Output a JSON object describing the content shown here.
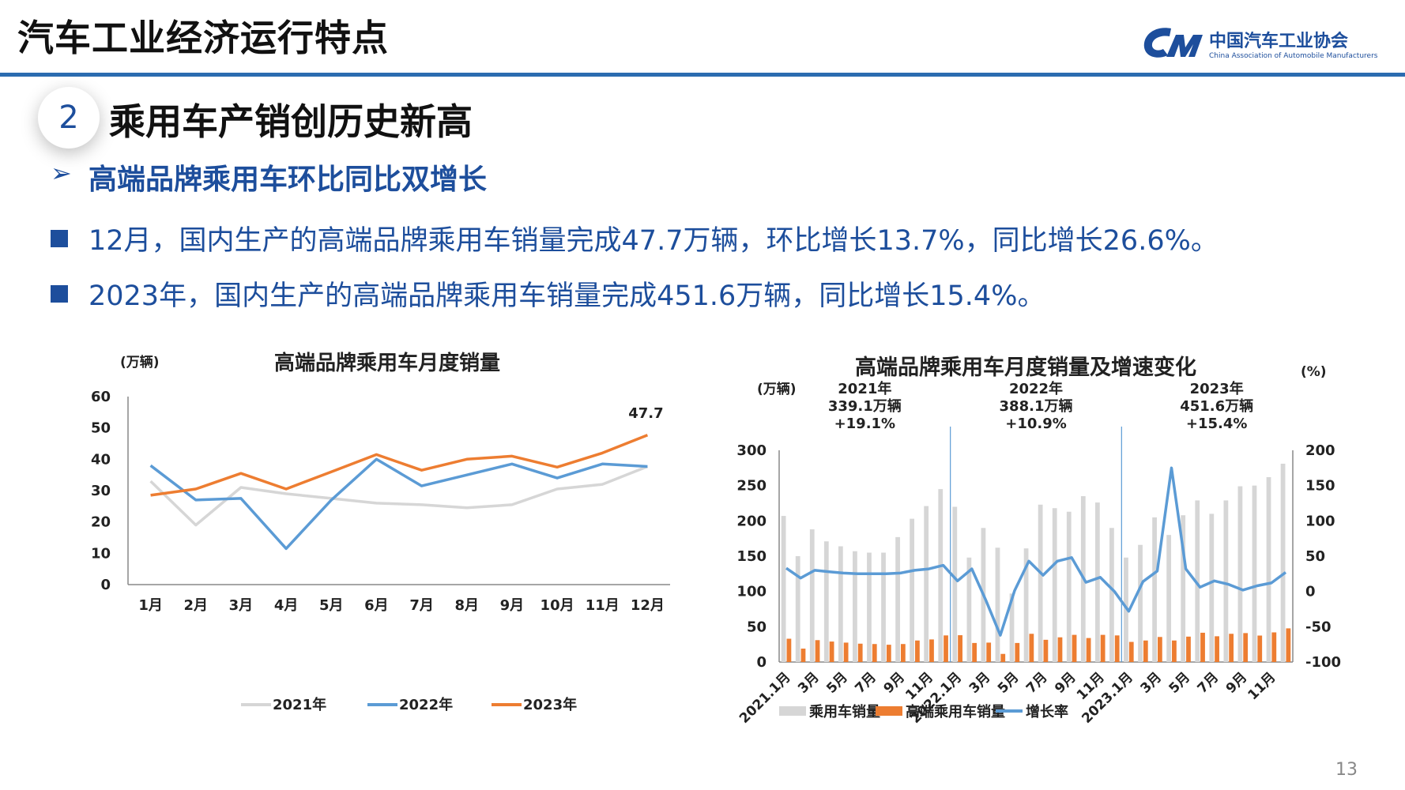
{
  "header": {
    "title": "汽车工业经济运行特点"
  },
  "logo": {
    "name": "中国汽车工业协会",
    "english": "China Association of Automobile Manufacturers"
  },
  "section": {
    "number": "2",
    "title": "乘用车产销创历史新高"
  },
  "subtitle": {
    "arrow": "➢",
    "text": "高端品牌乘用车环比同比双增长"
  },
  "bullets": [
    "12月，国内生产的高端品牌乘用车销量完成47.7万辆，环比增长13.7%，同比增长26.6%。",
    "2023年，国内生产的高端品牌乘用车销量完成451.6万辆，同比增长15.4%。"
  ],
  "page_number": "13",
  "colors": {
    "y2021": "#d6d6d6",
    "y2022": "#5b9bd5",
    "y2023": "#ed7d31",
    "accent": "#1d4e9c"
  },
  "chart_data": [
    {
      "type": "line",
      "title": "高端品牌乘用车月度销量",
      "ylabel": "(万辆)",
      "ylim": [
        0,
        60
      ],
      "yticks": [
        0,
        10,
        20,
        30,
        40,
        50,
        60
      ],
      "categories": [
        "1月",
        "2月",
        "3月",
        "4月",
        "5月",
        "6月",
        "7月",
        "8月",
        "9月",
        "10月",
        "11月",
        "12月"
      ],
      "series": [
        {
          "name": "2021年",
          "values": [
            33,
            19,
            31,
            29,
            27.5,
            26,
            25.5,
            24.5,
            25.5,
            30.5,
            32,
            37.7
          ]
        },
        {
          "name": "2022年",
          "values": [
            38,
            27,
            27.5,
            11.5,
            27,
            40,
            31.5,
            35,
            38.5,
            34,
            38.5,
            37.7
          ]
        },
        {
          "name": "2023年",
          "values": [
            28.5,
            30.5,
            35.5,
            30.5,
            36,
            41.5,
            36.5,
            40,
            41,
            37.5,
            42,
            47.7
          ]
        }
      ],
      "annotations": [
        {
          "text": "47.7",
          "series": "2023年",
          "category": "12月"
        }
      ],
      "legend": "bottom"
    },
    {
      "type": "bar",
      "title": "高端品牌乘用车月度销量及增速变化",
      "ylabel": "(万辆)",
      "y2label": "(%)",
      "ylim": [
        0,
        300
      ],
      "yticks": [
        0,
        50,
        100,
        150,
        200,
        250,
        300
      ],
      "y2lim": [
        -100,
        200
      ],
      "y2ticks": [
        -100,
        -50,
        0,
        50,
        100,
        150,
        200
      ],
      "x_tick_labels": [
        "2021.1月",
        "3月",
        "5月",
        "7月",
        "9月",
        "11月",
        "2022.1月",
        "3月",
        "5月",
        "7月",
        "9月",
        "11月",
        "2023.1月",
        "3月",
        "5月",
        "7月",
        "9月",
        "11月"
      ],
      "year_notes": [
        {
          "year": "2021年",
          "total": "339.1万辆",
          "growth": "+19.1%"
        },
        {
          "year": "2022年",
          "total": "388.1万辆",
          "growth": "+10.9%"
        },
        {
          "year": "2023年",
          "total": "451.6万辆",
          "growth": "+15.4%"
        }
      ],
      "series": [
        {
          "name": "乘用车销量",
          "type": "bar",
          "axis": "left",
          "values": [
            207,
            150,
            188,
            171,
            164,
            157,
            155,
            155,
            177,
            203,
            221,
            245,
            220,
            148,
            190,
            162,
            97,
            161,
            223,
            218,
            213,
            235,
            226,
            190,
            148,
            166,
            205,
            180,
            208,
            229,
            210,
            229,
            249,
            250,
            262,
            281
          ]
        },
        {
          "name": "高端乘用车销量",
          "type": "bar",
          "axis": "left",
          "values": [
            33,
            19,
            31,
            29,
            27.5,
            26,
            25.5,
            24.5,
            25.5,
            30.5,
            32,
            37.7,
            38,
            27,
            27.5,
            11.5,
            27,
            40,
            31.5,
            35,
            38.5,
            34,
            38.5,
            37.7,
            28.5,
            30.5,
            35.5,
            30.5,
            36,
            41.5,
            36.5,
            40,
            41,
            37.5,
            42,
            47.7
          ]
        },
        {
          "name": "增长率",
          "type": "line",
          "axis": "right",
          "values": [
            33,
            19,
            30,
            28,
            26,
            25,
            25,
            25,
            26,
            30,
            32,
            37,
            15,
            32,
            -13,
            -62,
            1,
            43,
            23,
            43,
            48,
            13,
            20,
            0,
            -28,
            14,
            29,
            175,
            32,
            6,
            15,
            10,
            2,
            8,
            12,
            27
          ]
        }
      ],
      "legend": "bottom"
    }
  ]
}
